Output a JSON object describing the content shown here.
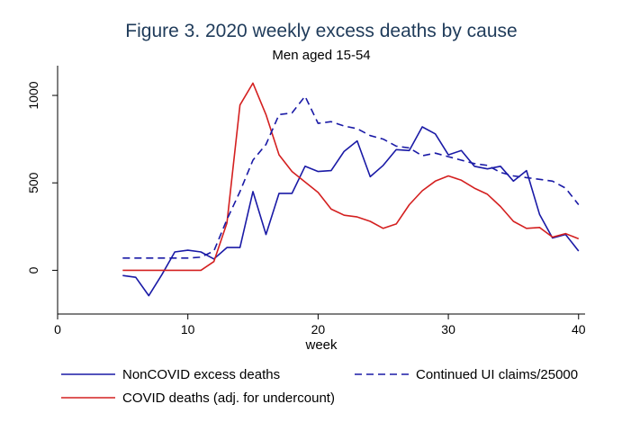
{
  "chart_data": {
    "type": "line",
    "title": "Figure 3.  2020 weekly excess deaths by cause",
    "subtitle": "Men aged 15-54",
    "xlabel": "week",
    "ylabel": "",
    "xlim": [
      0,
      40.5
    ],
    "ylim": [
      -250,
      1170
    ],
    "xticks": [
      0,
      10,
      20,
      30,
      40
    ],
    "yticks": [
      0,
      500,
      1000
    ],
    "grid": false,
    "legend_position": "bottom",
    "series": [
      {
        "name": "NonCOVID excess deaths",
        "color": "#1a1aa6",
        "style": "solid",
        "x": [
          5,
          6,
          7,
          8,
          9,
          10,
          11,
          12,
          13,
          14,
          15,
          16,
          17,
          18,
          19,
          20,
          21,
          22,
          23,
          24,
          25,
          26,
          27,
          28,
          29,
          30,
          31,
          32,
          33,
          34,
          35,
          36,
          37,
          38,
          39,
          40
        ],
        "y": [
          -30,
          -40,
          -145,
          -25,
          105,
          115,
          105,
          65,
          130,
          130,
          450,
          205,
          440,
          440,
          595,
          565,
          570,
          680,
          740,
          535,
          600,
          690,
          685,
          820,
          780,
          660,
          685,
          595,
          580,
          595,
          510,
          570,
          320,
          185,
          205,
          110
        ]
      },
      {
        "name": "COVID deaths (adj. for undercount)",
        "color": "#d42020",
        "style": "solid",
        "x": [
          5,
          6,
          7,
          8,
          9,
          10,
          11,
          12,
          13,
          14,
          15,
          16,
          17,
          18,
          19,
          20,
          21,
          22,
          23,
          24,
          25,
          26,
          27,
          28,
          29,
          30,
          31,
          32,
          33,
          34,
          35,
          36,
          37,
          38,
          39,
          40
        ],
        "y": [
          0,
          0,
          0,
          0,
          0,
          0,
          0,
          50,
          270,
          945,
          1070,
          890,
          660,
          565,
          505,
          445,
          350,
          315,
          305,
          280,
          240,
          265,
          375,
          455,
          510,
          540,
          515,
          470,
          435,
          365,
          280,
          240,
          245,
          190,
          210,
          180
        ]
      },
      {
        "name": "Continued UI claims/25000",
        "color": "#1a1aa6",
        "style": "dashed",
        "x": [
          5,
          6,
          7,
          8,
          9,
          10,
          11,
          12,
          13,
          14,
          15,
          16,
          17,
          18,
          19,
          20,
          21,
          22,
          23,
          24,
          25,
          26,
          27,
          28,
          29,
          30,
          31,
          32,
          33,
          34,
          35,
          36,
          37,
          38,
          39,
          40
        ],
        "y": [
          70,
          70,
          70,
          70,
          70,
          70,
          75,
          110,
          290,
          450,
          630,
          720,
          890,
          900,
          995,
          840,
          850,
          825,
          810,
          770,
          750,
          710,
          700,
          655,
          670,
          650,
          630,
          610,
          600,
          560,
          540,
          530,
          520,
          510,
          470,
          375
        ]
      }
    ]
  }
}
